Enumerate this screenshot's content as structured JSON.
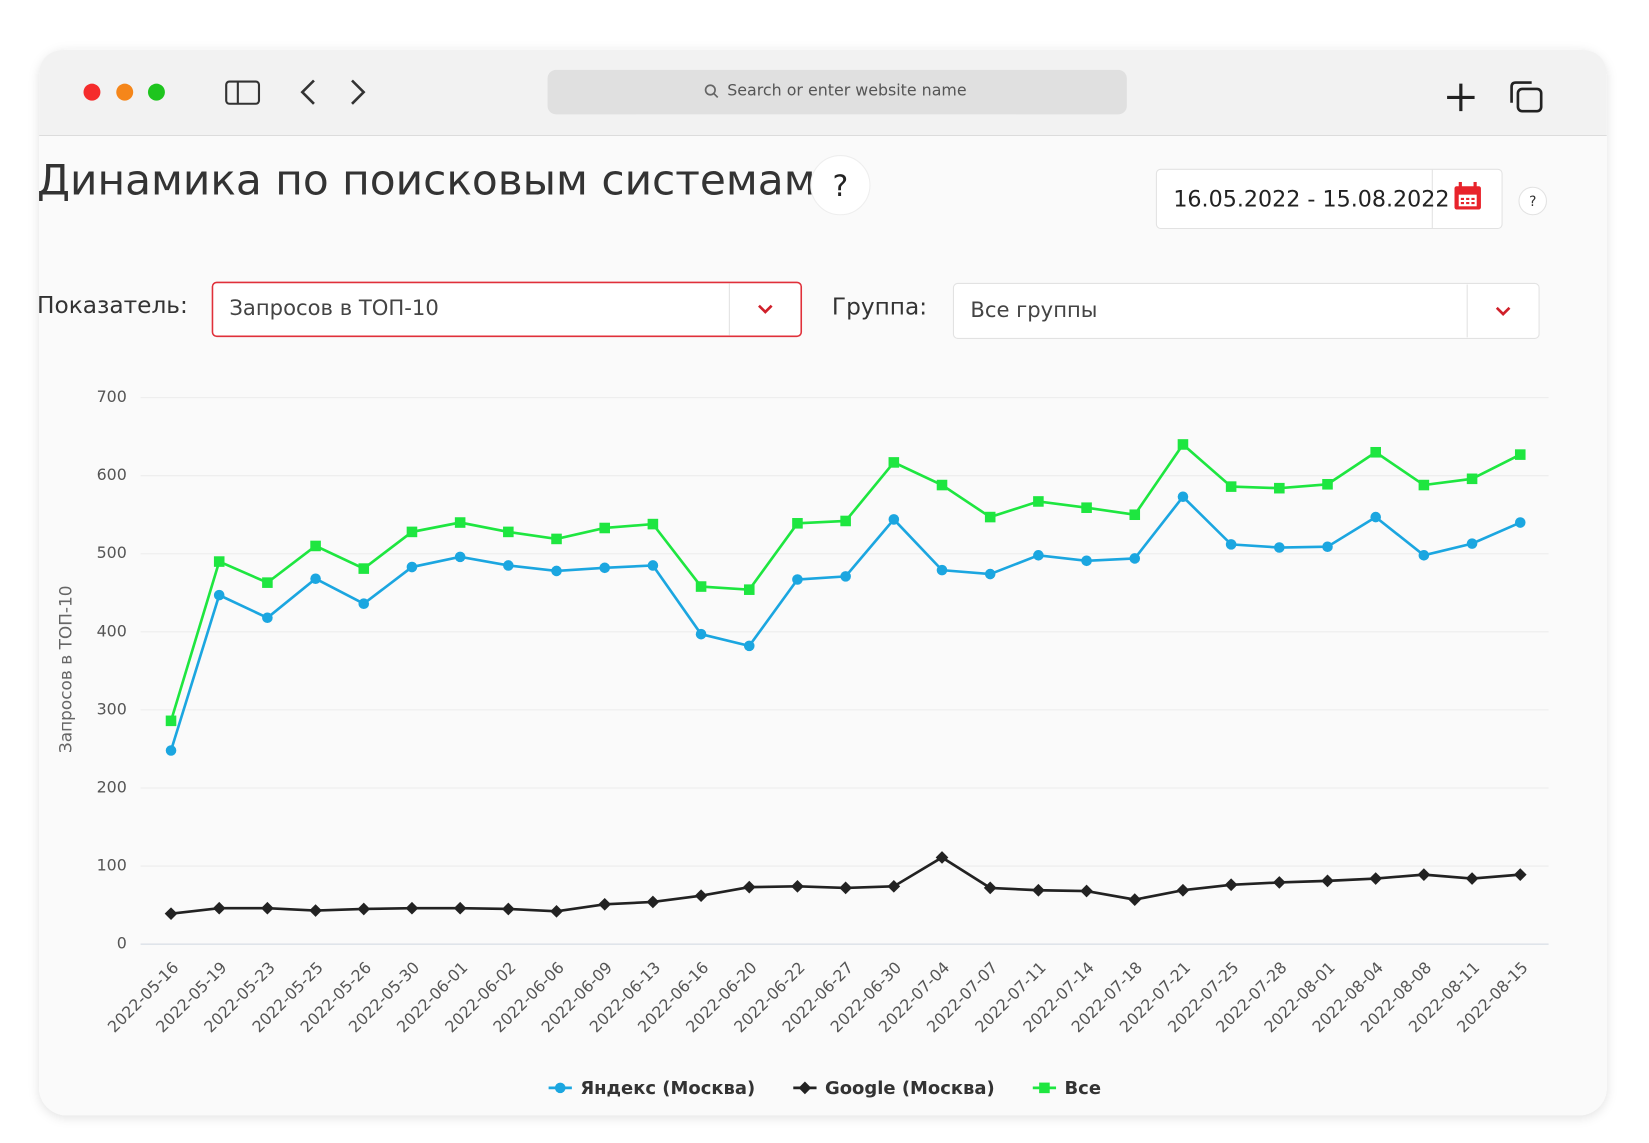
{
  "browser": {
    "search_placeholder": "Search or enter website name"
  },
  "page": {
    "title": "Динамика по поисковым системам",
    "help": "?",
    "date_range": "16.05.2022 - 15.08.2022",
    "metric_label": "Показатель:",
    "metric_value": "Запросов в ТОП-10",
    "group_label": "Группа:",
    "group_value": "Все группы"
  },
  "chart_data": {
    "type": "line",
    "y_label": "Запросов в ТОП-10",
    "categories": [
      "2022-05-16",
      "2022-05-19",
      "2022-05-23",
      "2022-05-25",
      "2022-05-26",
      "2022-05-30",
      "2022-06-01",
      "2022-06-02",
      "2022-06-06",
      "2022-06-09",
      "2022-06-13",
      "2022-06-16",
      "2022-06-20",
      "2022-06-22",
      "2022-06-27",
      "2022-06-30",
      "2022-07-04",
      "2022-07-07",
      "2022-07-11",
      "2022-07-14",
      "2022-07-18",
      "2022-07-21",
      "2022-07-25",
      "2022-07-28",
      "2022-08-01",
      "2022-08-04",
      "2022-08-08",
      "2022-08-11",
      "2022-08-15"
    ],
    "series": [
      {
        "name": "Яндекс (Москва)",
        "color": "#1ba6e0",
        "marker": "circle",
        "values": [
          248,
          447,
          418,
          468,
          436,
          483,
          496,
          485,
          478,
          482,
          485,
          397,
          382,
          467,
          471,
          544,
          479,
          474,
          498,
          491,
          494,
          573,
          512,
          508,
          509,
          547,
          498,
          513,
          540
        ]
      },
      {
        "name": "Google (Москва)",
        "color": "#222222",
        "marker": "diamond",
        "values": [
          39,
          46,
          46,
          43,
          45,
          46,
          46,
          45,
          42,
          51,
          54,
          62,
          73,
          74,
          72,
          74,
          111,
          72,
          69,
          68,
          57,
          69,
          76,
          79,
          81,
          84,
          89,
          84,
          89
        ]
      },
      {
        "name": "Все",
        "color": "#1ee640",
        "marker": "square",
        "values": [
          286,
          490,
          463,
          510,
          481,
          528,
          540,
          528,
          519,
          533,
          538,
          458,
          454,
          539,
          542,
          617,
          588,
          547,
          567,
          559,
          550,
          640,
          586,
          584,
          589,
          630,
          588,
          596,
          627
        ]
      }
    ],
    "ylim": [
      0,
      700
    ],
    "yticks": [
      0,
      100,
      200,
      300,
      400,
      500,
      600,
      700
    ],
    "grid": true
  }
}
